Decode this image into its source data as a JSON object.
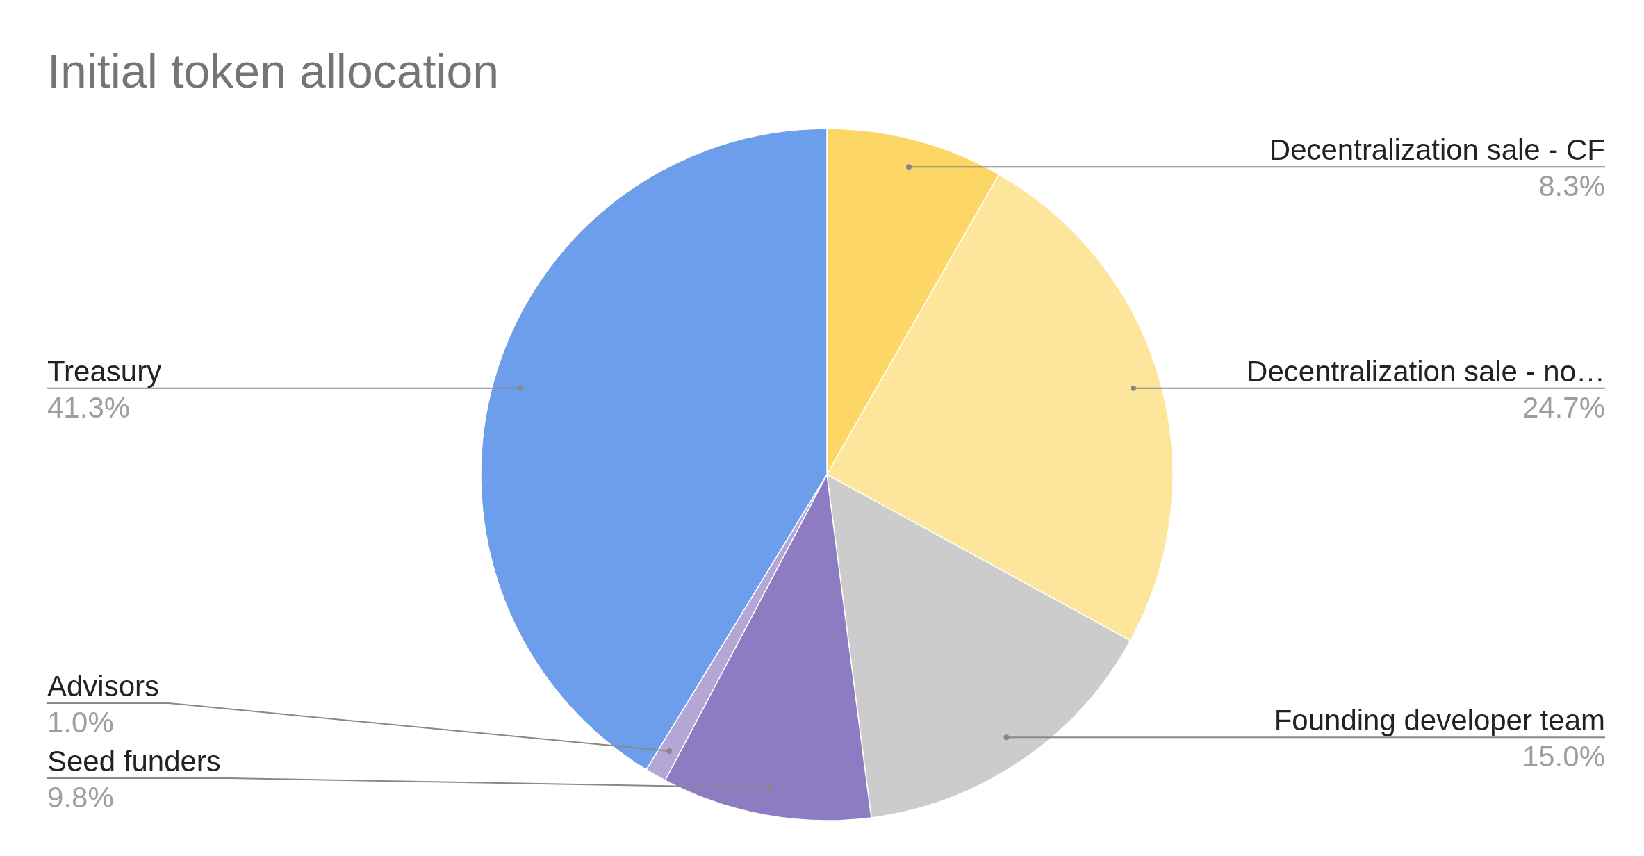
{
  "chart_data": {
    "type": "pie",
    "title": "Initial token allocation",
    "categories": [
      "Decentralization sale - CF",
      "Decentralization sale - no…",
      "Founding developer team",
      "Seed funders",
      "Advisors",
      "Treasury"
    ],
    "values": [
      8.3,
      24.7,
      15.0,
      9.8,
      1.0,
      41.3
    ],
    "colors": [
      "#fcd766",
      "#fde59b",
      "#cccccc",
      "#8e7cc3",
      "#b4a7d6",
      "#6d9eeb"
    ],
    "value_labels": [
      "8.3%",
      "24.7%",
      "15.0%",
      "9.8%",
      "1.0%",
      "41.3%"
    ]
  }
}
